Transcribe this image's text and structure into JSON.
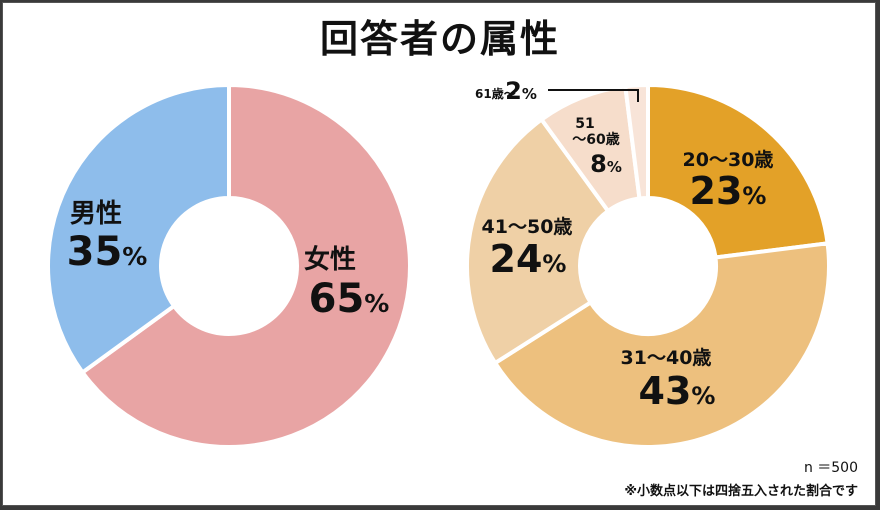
{
  "title": "回答者の属性",
  "chart_data": [
    {
      "type": "pie",
      "categories": [
        "女性",
        "男性"
      ],
      "values": [
        65,
        35
      ],
      "value_labels": [
        "65",
        "35"
      ],
      "colors": [
        "#E8A4A4",
        "#8EBDEB"
      ]
    },
    {
      "type": "pie",
      "categories": [
        "20～30歳",
        "31～40歳",
        "41～50歳",
        "51～60歳",
        "61歳～"
      ],
      "values": [
        23,
        43,
        24,
        8,
        2
      ],
      "value_labels": [
        "23",
        "43",
        "24",
        "8",
        "2"
      ],
      "colors": [
        "#E3A128",
        "#EDC07E",
        "#EFD0A6",
        "#F6DDCB",
        "#F8E4D8"
      ]
    }
  ],
  "percent_sign": "%",
  "sample_size": "n ＝500",
  "rounding_note": "※小数点以下は四捨五入された割合です"
}
